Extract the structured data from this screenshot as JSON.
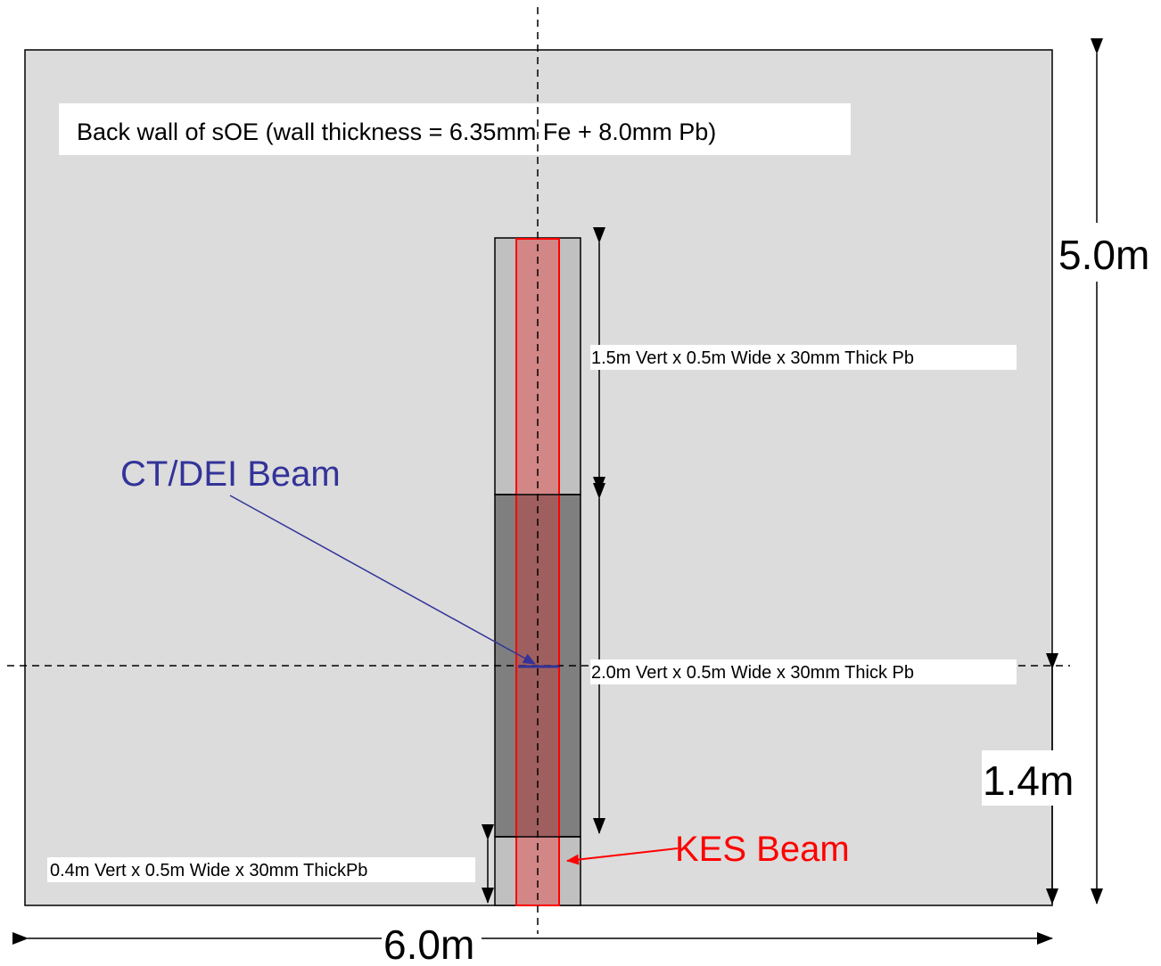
{
  "wall_title": "Back wall of sOE (wall thickness = 6.35mm Fe + 8.0mm Pb)",
  "labels": {
    "top_plate": "1.5m Vert x 0.5m Wide x 30mm Thick Pb",
    "middle_plate": "2.0m Vert x 0.5m Wide x 30mm Thick Pb",
    "bottom_plate": "0.4m Vert x 0.5m Wide x 30mm ThickPb",
    "ct_dei_beam": "CT/DEI Beam",
    "kes_beam": "KES Beam"
  },
  "dimensions": {
    "height": "5.0m",
    "width": "6.0m",
    "beam_height": "1.4m"
  },
  "colors": {
    "wall": "#dcdcdc",
    "top_plate": "#c0c0c0",
    "middle_plate": "#7f7f7f",
    "bottom_plate": "#c0c0c0",
    "kes_beam": "#ff0000",
    "kes_band_light": "#d28686",
    "kes_band_dark": "#a05f5f",
    "ct_dei_beam": "#333399"
  }
}
